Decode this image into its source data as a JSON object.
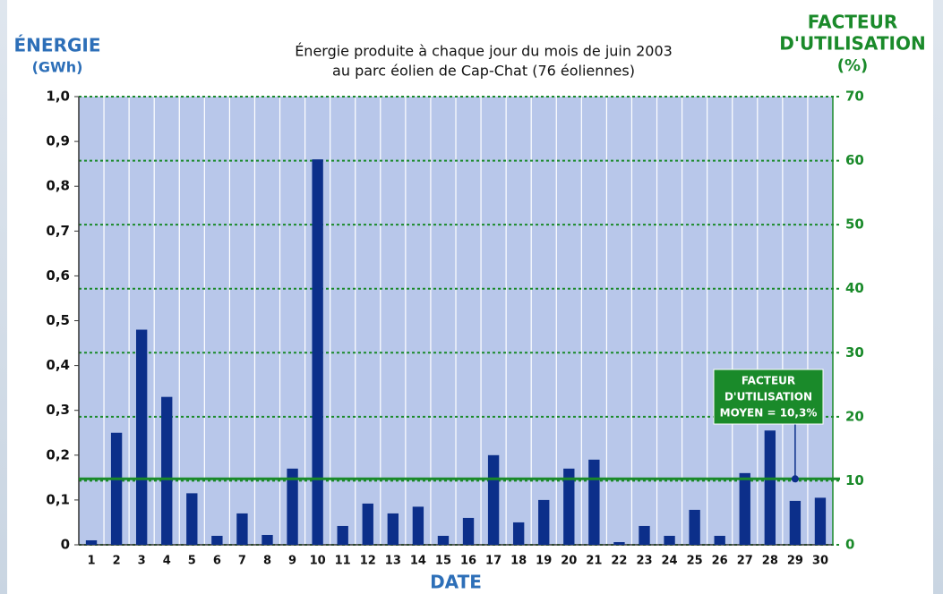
{
  "chart_data": {
    "type": "bar",
    "title": [
      "Énergie produite à chaque jour du mois de juin 2003",
      "au parc éolien de Cap-Chat (76 éoliennes)"
    ],
    "y_label": [
      "ÉNERGIE",
      "(GWh)"
    ],
    "y2_label": [
      "FACTEUR",
      "D'UTILISATION",
      "(%)"
    ],
    "x_label": "DATE",
    "categories": [
      "1",
      "2",
      "3",
      "4",
      "5",
      "6",
      "7",
      "8",
      "9",
      "10",
      "11",
      "12",
      "13",
      "14",
      "15",
      "16",
      "17",
      "18",
      "19",
      "20",
      "21",
      "22",
      "23",
      "24",
      "25",
      "26",
      "27",
      "28",
      "29",
      "30"
    ],
    "series": [
      {
        "name": "Énergie",
        "color": "#0c2f8a",
        "values": [
          0.01,
          0.25,
          0.48,
          0.33,
          0.115,
          0.02,
          0.07,
          0.022,
          0.17,
          0.86,
          0.042,
          0.092,
          0.07,
          0.085,
          0.02,
          0.06,
          0.2,
          0.05,
          0.1,
          0.17,
          0.19,
          0.006,
          0.042,
          0.02,
          0.078,
          0.02,
          0.16,
          0.255,
          0.098,
          0.105
        ]
      }
    ],
    "ylim": [
      0,
      1
    ],
    "yticks": [
      0,
      {
        "value": 0.1,
        "label": "0,1"
      },
      {
        "value": 0.2,
        "label": "0,2"
      },
      {
        "value": 0.3,
        "label": "0,3"
      },
      {
        "value": 0.4,
        "label": "0,4"
      },
      {
        "value": 0.5,
        "label": "0,5"
      },
      {
        "value": 0.6,
        "label": "0,6"
      },
      {
        "value": 0.7,
        "label": "0,7"
      },
      {
        "value": 0.8,
        "label": "0,8"
      },
      {
        "value": 0.9,
        "label": "0,9"
      },
      {
        "value": 1,
        "label": "1,0"
      }
    ],
    "y2lim": [
      0,
      70
    ],
    "y2ticks": [
      0,
      10,
      20,
      30,
      40,
      50,
      60,
      70
    ],
    "average": {
      "value": 10.3,
      "axis": "y2",
      "color": "#1a8a2a",
      "label": [
        "FACTEUR",
        "D'UTILISATION",
        "MOYEN = 10,3%"
      ]
    }
  }
}
